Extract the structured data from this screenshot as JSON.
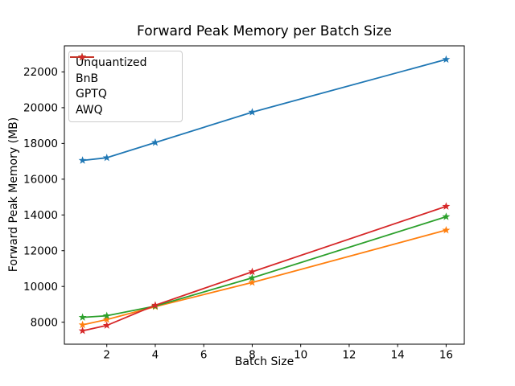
{
  "chart_data": {
    "type": "line",
    "title": "Forward Peak Memory per Batch Size",
    "xlabel": "Batch Size",
    "ylabel": "Forward Peak Memory (MB)",
    "x": [
      1,
      2,
      4,
      8,
      16
    ],
    "series": [
      {
        "name": "Unquantized",
        "color": "#1f77b4",
        "values": [
          17050,
          17200,
          18050,
          19750,
          22700
        ]
      },
      {
        "name": "BnB",
        "color": "#ff7f0e",
        "values": [
          7850,
          8150,
          8870,
          10220,
          13150
        ]
      },
      {
        "name": "GPTQ",
        "color": "#2ca02c",
        "values": [
          8270,
          8360,
          8900,
          10480,
          13900
        ]
      },
      {
        "name": "AWQ",
        "color": "#d62728",
        "values": [
          7520,
          7820,
          8950,
          10820,
          14480
        ]
      }
    ],
    "xticks": [
      2,
      4,
      6,
      8,
      10,
      12,
      14,
      16
    ],
    "yticks": [
      8000,
      10000,
      12000,
      14000,
      16000,
      18000,
      20000,
      22000
    ],
    "xlim": [
      0.25,
      16.75
    ],
    "ylim": [
      6770,
      23460
    ],
    "marker": "star",
    "grid": false,
    "legend_position": "upper left",
    "background_color": "#ffffff",
    "axis_color": "#000000",
    "legend_border_color": "#cccccc"
  }
}
